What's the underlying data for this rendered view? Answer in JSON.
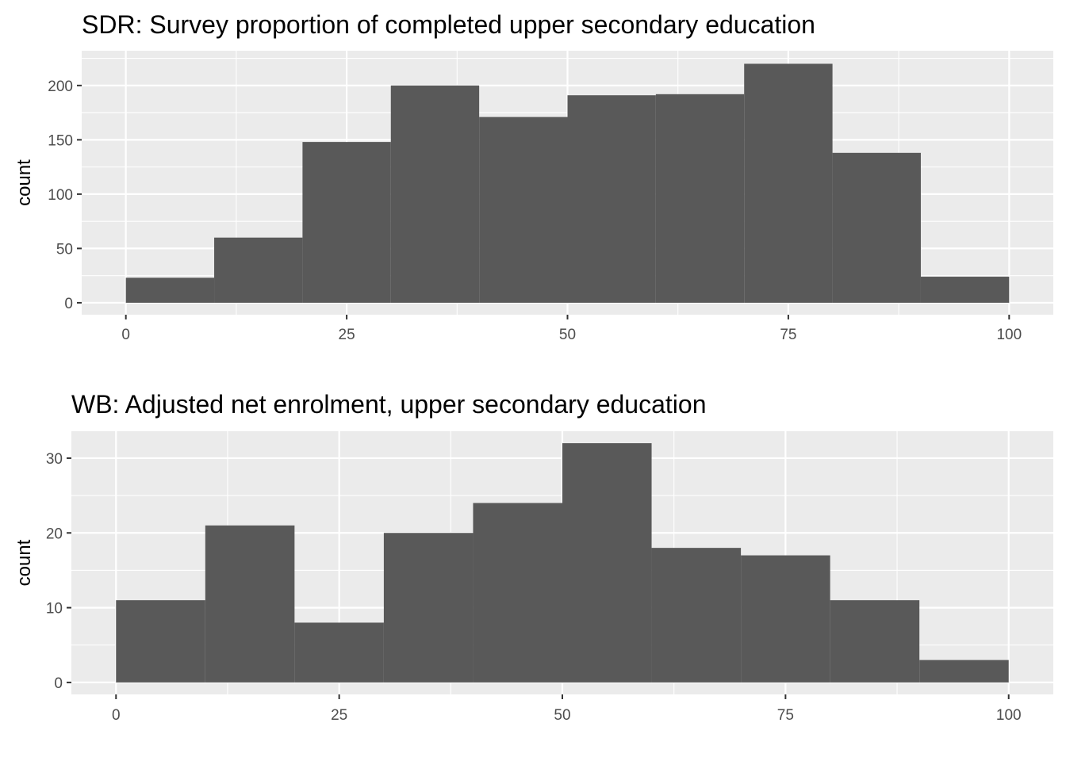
{
  "chart_data": [
    {
      "type": "bar",
      "subtype": "histogram",
      "title": "SDR: Survey proportion of completed upper secondary education",
      "xlabel": "",
      "ylabel": "count",
      "bins": [
        {
          "start": 0,
          "end": 10,
          "count": 23
        },
        {
          "start": 10,
          "end": 20,
          "count": 60
        },
        {
          "start": 20,
          "end": 30,
          "count": 148
        },
        {
          "start": 30,
          "end": 40,
          "count": 200
        },
        {
          "start": 40,
          "end": 50,
          "count": 171
        },
        {
          "start": 50,
          "end": 60,
          "count": 191
        },
        {
          "start": 60,
          "end": 70,
          "count": 192
        },
        {
          "start": 70,
          "end": 80,
          "count": 220
        },
        {
          "start": 80,
          "end": 90,
          "count": 138
        },
        {
          "start": 90,
          "end": 100,
          "count": 24
        }
      ],
      "x_ticks": [
        "0",
        "25",
        "50",
        "75",
        "100"
      ],
      "y_ticks": [
        "0",
        "50",
        "100",
        "150",
        "200"
      ],
      "xlim": [
        -5,
        105
      ],
      "ylim": [
        -11,
        232
      ],
      "grid": true
    },
    {
      "type": "bar",
      "subtype": "histogram",
      "title": "WB: Adjusted net enrolment, upper secondary education",
      "xlabel": "",
      "ylabel": "count",
      "bins": [
        {
          "start": 0,
          "end": 10,
          "count": 11
        },
        {
          "start": 10,
          "end": 20,
          "count": 21
        },
        {
          "start": 20,
          "end": 30,
          "count": 8
        },
        {
          "start": 30,
          "end": 40,
          "count": 20
        },
        {
          "start": 40,
          "end": 50,
          "count": 24
        },
        {
          "start": 50,
          "end": 60,
          "count": 32
        },
        {
          "start": 60,
          "end": 70,
          "count": 18
        },
        {
          "start": 70,
          "end": 80,
          "count": 17
        },
        {
          "start": 80,
          "end": 90,
          "count": 11
        },
        {
          "start": 90,
          "end": 100,
          "count": 3
        }
      ],
      "x_ticks": [
        "0",
        "25",
        "50",
        "75",
        "100"
      ],
      "y_ticks": [
        "0",
        "10",
        "20",
        "30"
      ],
      "xlim": [
        -5,
        105
      ],
      "ylim": [
        -1.6,
        33.6
      ],
      "grid": true
    }
  ]
}
